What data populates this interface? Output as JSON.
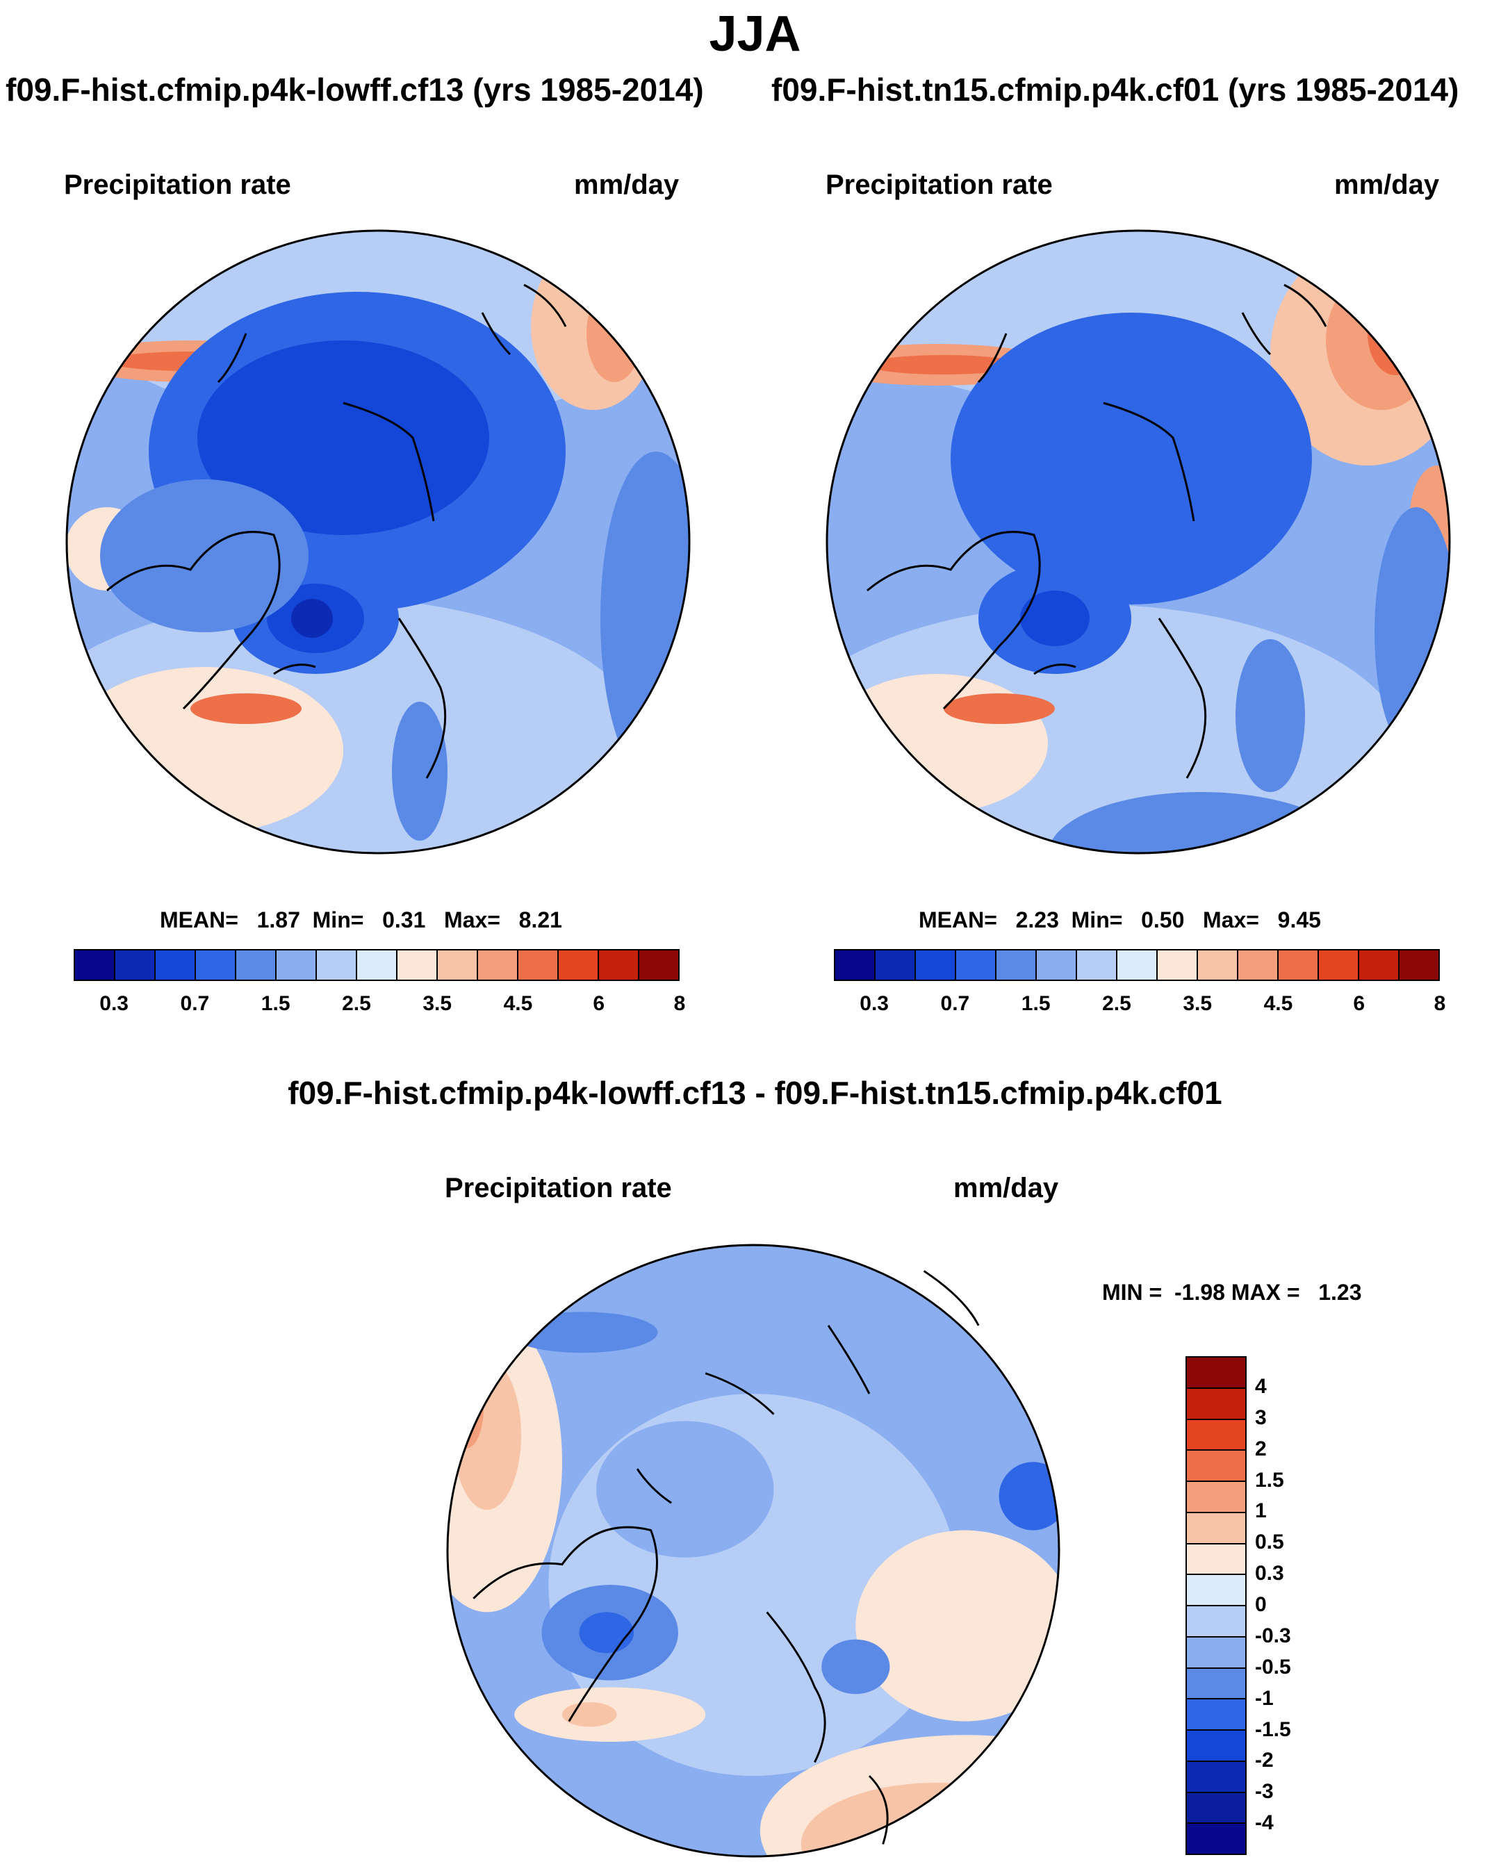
{
  "season": "JJA",
  "panel_left": {
    "title": "f09.F-hist.cfmip.p4k-lowff.cf13 (yrs 1985-2014)",
    "variable": "Precipitation rate",
    "units": "mm/day",
    "stats": "MEAN=   1.87  Min=   0.31   Max=   8.21"
  },
  "panel_right": {
    "title": "f09.F-hist.tn15.cfmip.p4k.cf01 (yrs 1985-2014)",
    "variable": "Precipitation rate",
    "units": "mm/day",
    "stats": "MEAN=   2.23  Min=   0.50   Max=   9.45"
  },
  "panel_diff": {
    "title": "f09.F-hist.cfmip.p4k-lowff.cf13 - f09.F-hist.tn15.cfmip.p4k.cf01",
    "variable": "Precipitation rate",
    "units": "mm/day",
    "stats": "MIN =  -1.98 MAX =   1.23"
  },
  "colorbar_main": {
    "colors": [
      "#08088c",
      "#0c2ab4",
      "#1447d8",
      "#2f66e6",
      "#5a8ae6",
      "#8aaef0",
      "#b6cdf6",
      "#dcebfa",
      "#fbe6d8",
      "#f8c4a8",
      "#f39f7c",
      "#ee7048",
      "#e44420",
      "#c4200c",
      "#8c0808"
    ],
    "labels": [
      "0.3",
      "0.7",
      "1.5",
      "2.5",
      "3.5",
      "4.5",
      "6",
      "8"
    ]
  },
  "colorbar_diff": {
    "colors": [
      "#8c0808",
      "#c4200c",
      "#e44420",
      "#ee7048",
      "#f39f7c",
      "#f8c4a8",
      "#fbe6d8",
      "#dcebfa",
      "#b6cdf6",
      "#8aaef0",
      "#5a8ae6",
      "#2f66e6",
      "#1447d8",
      "#0c2ab4",
      "#0c1ea0",
      "#08088c"
    ],
    "labels": [
      "4",
      "3",
      "2",
      "1.5",
      "1",
      "0.5",
      "0.3",
      "0",
      "-0.3",
      "-0.5",
      "-1",
      "-1.5",
      "-2",
      "-3",
      "-4"
    ]
  }
}
